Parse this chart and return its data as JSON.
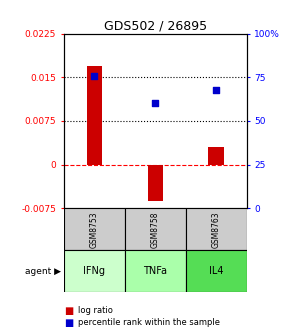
{
  "title": "GDS502 / 26895",
  "samples": [
    "GSM8753",
    "GSM8758",
    "GSM8763"
  ],
  "agents": [
    "IFNg",
    "TNFa",
    "IL4"
  ],
  "log_ratios": [
    0.017,
    -0.0062,
    0.003
  ],
  "percentile_ranks": [
    0.76,
    0.6,
    0.675
  ],
  "left_ylim": [
    -0.0075,
    0.0225
  ],
  "right_ylim": [
    0,
    1.0
  ],
  "left_yticks": [
    -0.0075,
    0,
    0.0075,
    0.015,
    0.0225
  ],
  "right_yticks": [
    0,
    0.25,
    0.5,
    0.75,
    1.0
  ],
  "right_yticklabels": [
    "0",
    "25",
    "50",
    "75",
    "100%"
  ],
  "left_yticklabels": [
    "-0.0075",
    "0",
    "0.0075",
    "0.015",
    "0.0225"
  ],
  "hline_dotted": [
    0.015,
    0.0075
  ],
  "hline_dashed_zero": 0,
  "bar_color": "#cc0000",
  "dot_color": "#0000cc",
  "agent_colors": [
    "#ccffcc",
    "#aaffaa",
    "#55dd55"
  ],
  "sample_box_color": "#cccccc",
  "bar_width": 0.25,
  "legend_log_label": "log ratio",
  "legend_pct_label": "percentile rank within the sample"
}
